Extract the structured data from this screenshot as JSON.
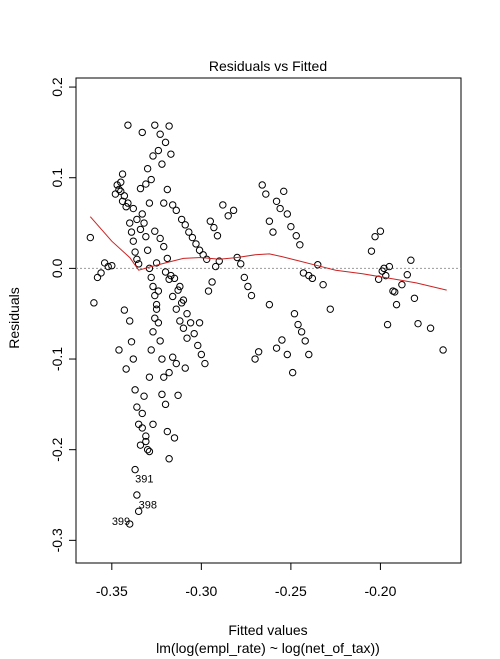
{
  "chart_data": {
    "type": "scatter",
    "title": "Residuals vs Fitted",
    "xlabel": "Fitted values",
    "xlabel_sub": "lm(log(empl_rate) ~ log(net_of_tax))",
    "ylabel": "Residuals",
    "xlim": [
      -0.37,
      -0.155
    ],
    "ylim": [
      -0.325,
      0.21
    ],
    "x_ticks": [
      -0.35,
      -0.3,
      -0.25,
      -0.2
    ],
    "x_tick_labels": [
      "-0.35",
      "-0.30",
      "-0.25",
      "-0.20"
    ],
    "y_ticks": [
      -0.3,
      -0.2,
      -0.1,
      0.0,
      0.1,
      0.2
    ],
    "y_tick_labels": [
      "-0.3",
      "-0.2",
      "-0.1",
      "0.0",
      "0.1",
      "0.2"
    ],
    "reference_line_y": 0,
    "colors": {
      "points": "#000000",
      "smooth": "#cc2222",
      "reference": "#9a9a9a"
    },
    "points": [
      [
        -0.362,
        0.034
      ],
      [
        -0.36,
        -0.038
      ],
      [
        -0.358,
        -0.01
      ],
      [
        -0.356,
        -0.005
      ],
      [
        -0.354,
        0.006
      ],
      [
        -0.352,
        0.002
      ],
      [
        -0.35,
        0.003
      ],
      [
        -0.348,
        0.082
      ],
      [
        -0.347,
        0.092
      ],
      [
        -0.346,
        0.087
      ],
      [
        -0.345,
        0.095
      ],
      [
        -0.344,
        0.074
      ],
      [
        -0.343,
        0.08
      ],
      [
        -0.345,
        0.085
      ],
      [
        -0.344,
        0.104
      ],
      [
        -0.342,
        0.068
      ],
      [
        -0.341,
        0.072
      ],
      [
        -0.34,
        0.05
      ],
      [
        -0.339,
        0.04
      ],
      [
        -0.338,
        0.03
      ],
      [
        -0.337,
        0.018
      ],
      [
        -0.336,
        0.01
      ],
      [
        -0.335,
        0.005
      ],
      [
        -0.334,
        0.088
      ],
      [
        -0.333,
        0.06
      ],
      [
        -0.332,
        0.05
      ],
      [
        -0.331,
        0.035
      ],
      [
        -0.33,
        0.02
      ],
      [
        -0.329,
        0.0
      ],
      [
        -0.328,
        -0.01
      ],
      [
        -0.327,
        -0.02
      ],
      [
        -0.326,
        -0.03
      ],
      [
        -0.325,
        -0.045
      ],
      [
        -0.324,
        -0.06
      ],
      [
        -0.323,
        -0.08
      ],
      [
        -0.322,
        -0.1
      ],
      [
        -0.321,
        -0.12
      ],
      [
        -0.32,
        -0.15
      ],
      [
        -0.319,
        -0.18
      ],
      [
        -0.318,
        -0.21
      ],
      [
        -0.346,
        -0.09
      ],
      [
        -0.343,
        -0.046
      ],
      [
        -0.342,
        -0.111
      ],
      [
        -0.34,
        -0.058
      ],
      [
        -0.339,
        -0.081
      ],
      [
        -0.338,
        -0.1
      ],
      [
        -0.337,
        -0.134
      ],
      [
        -0.336,
        -0.153
      ],
      [
        -0.335,
        -0.172
      ],
      [
        -0.334,
        -0.195
      ],
      [
        -0.333,
        -0.16
      ],
      [
        -0.332,
        -0.141
      ],
      [
        -0.331,
        -0.185
      ],
      [
        -0.33,
        -0.2
      ],
      [
        -0.329,
        -0.12
      ],
      [
        -0.328,
        -0.09
      ],
      [
        -0.327,
        -0.07
      ],
      [
        -0.326,
        -0.055
      ],
      [
        -0.325,
        -0.04
      ],
      [
        -0.324,
        -0.025
      ],
      [
        -0.341,
        0.158
      ],
      [
        -0.333,
        0.15
      ],
      [
        -0.326,
        0.158
      ],
      [
        -0.323,
        0.148
      ],
      [
        -0.318,
        0.157
      ],
      [
        -0.32,
        0.139
      ],
      [
        -0.324,
        0.13
      ],
      [
        -0.327,
        0.124
      ],
      [
        -0.33,
        0.11
      ],
      [
        -0.322,
        0.115
      ],
      [
        -0.317,
        0.126
      ],
      [
        -0.331,
        0.093
      ],
      [
        -0.328,
        0.098
      ],
      [
        -0.319,
        0.087
      ],
      [
        -0.316,
        0.07
      ],
      [
        -0.321,
        0.072
      ],
      [
        -0.314,
        0.064
      ],
      [
        -0.311,
        0.054
      ],
      [
        -0.309,
        0.048
      ],
      [
        -0.307,
        0.04
      ],
      [
        -0.305,
        0.034
      ],
      [
        -0.303,
        0.027
      ],
      [
        -0.301,
        0.02
      ],
      [
        -0.299,
        0.015
      ],
      [
        -0.297,
        0.01
      ],
      [
        -0.295,
        0.052
      ],
      [
        -0.293,
        0.045
      ],
      [
        -0.291,
        0.036
      ],
      [
        -0.312,
        -0.02
      ],
      [
        -0.31,
        -0.035
      ],
      [
        -0.308,
        -0.05
      ],
      [
        -0.306,
        -0.06
      ],
      [
        -0.304,
        -0.072
      ],
      [
        -0.302,
        -0.085
      ],
      [
        -0.3,
        -0.095
      ],
      [
        -0.298,
        -0.105
      ],
      [
        -0.313,
        -0.14
      ],
      [
        -0.315,
        -0.187
      ],
      [
        -0.309,
        -0.11
      ],
      [
        -0.301,
        -0.06
      ],
      [
        -0.296,
        -0.025
      ],
      [
        -0.294,
        -0.015
      ],
      [
        -0.292,
        0.002
      ],
      [
        -0.29,
        0.008
      ],
      [
        -0.288,
        0.07
      ],
      [
        -0.285,
        0.058
      ],
      [
        -0.282,
        0.064
      ],
      [
        -0.28,
        0.012
      ],
      [
        -0.278,
        0.005
      ],
      [
        -0.276,
        -0.01
      ],
      [
        -0.274,
        -0.02
      ],
      [
        -0.272,
        -0.03
      ],
      [
        -0.27,
        -0.1
      ],
      [
        -0.268,
        -0.092
      ],
      [
        -0.266,
        0.092
      ],
      [
        -0.264,
        0.082
      ],
      [
        -0.262,
        0.052
      ],
      [
        -0.26,
        0.04
      ],
      [
        -0.258,
        0.074
      ],
      [
        -0.256,
        0.066
      ],
      [
        -0.254,
        0.085
      ],
      [
        -0.252,
        0.06
      ],
      [
        -0.25,
        0.046
      ],
      [
        -0.248,
        -0.05
      ],
      [
        -0.246,
        -0.062
      ],
      [
        -0.244,
        -0.07
      ],
      [
        -0.242,
        -0.08
      ],
      [
        -0.24,
        -0.095
      ],
      [
        -0.262,
        -0.04
      ],
      [
        -0.258,
        -0.088
      ],
      [
        -0.255,
        -0.079
      ],
      [
        -0.252,
        -0.095
      ],
      [
        -0.249,
        -0.115
      ],
      [
        -0.247,
        0.036
      ],
      [
        -0.245,
        0.026
      ],
      [
        -0.243,
        -0.005
      ],
      [
        -0.24,
        -0.008
      ],
      [
        -0.238,
        -0.011
      ],
      [
        -0.235,
        0.004
      ],
      [
        -0.232,
        -0.018
      ],
      [
        -0.228,
        -0.045
      ],
      [
        -0.205,
        0.019
      ],
      [
        -0.203,
        0.035
      ],
      [
        -0.2,
        0.041
      ],
      [
        -0.199,
        -0.003
      ],
      [
        -0.197,
        -0.008
      ],
      [
        -0.195,
        0.002
      ],
      [
        -0.193,
        -0.025
      ],
      [
        -0.191,
        -0.04
      ],
      [
        -0.188,
        -0.018
      ],
      [
        -0.185,
        -0.007
      ],
      [
        -0.183,
        0.009
      ],
      [
        -0.181,
        -0.033
      ],
      [
        -0.179,
        -0.061
      ],
      [
        -0.172,
        -0.066
      ],
      [
        -0.165,
        -0.09
      ],
      [
        -0.196,
        -0.062
      ],
      [
        -0.201,
        -0.012
      ],
      [
        -0.198,
        0.0
      ],
      [
        -0.192,
        -0.026
      ],
      [
        -0.338,
        0.066
      ],
      [
        -0.336,
        0.054
      ],
      [
        -0.334,
        0.043
      ],
      [
        -0.329,
        0.072
      ],
      [
        -0.326,
        0.041
      ],
      [
        -0.323,
        0.033
      ],
      [
        -0.321,
        0.024
      ],
      [
        -0.319,
        0.011
      ],
      [
        -0.317,
        -0.008
      ],
      [
        -0.315,
        -0.011
      ],
      [
        -0.313,
        -0.024
      ],
      [
        -0.311,
        -0.038
      ],
      [
        -0.325,
        0.006
      ],
      [
        -0.32,
        -0.004
      ],
      [
        -0.318,
        -0.012
      ],
      [
        -0.316,
        -0.031
      ],
      [
        -0.314,
        -0.045
      ],
      [
        -0.312,
        -0.058
      ],
      [
        -0.31,
        -0.066
      ],
      [
        -0.308,
        -0.077
      ],
      [
        -0.337,
        -0.222
      ],
      [
        -0.336,
        -0.25
      ],
      [
        -0.335,
        -0.268
      ],
      [
        -0.34,
        -0.282
      ],
      [
        -0.329,
        -0.202
      ],
      [
        -0.331,
        -0.191
      ],
      [
        -0.327,
        -0.172
      ],
      [
        -0.333,
        -0.176
      ],
      [
        -0.322,
        -0.139
      ],
      [
        -0.318,
        -0.115
      ],
      [
        -0.316,
        -0.098
      ],
      [
        -0.314,
        -0.105
      ]
    ],
    "smooth": [
      [
        -0.362,
        0.057
      ],
      [
        -0.35,
        0.03
      ],
      [
        -0.34,
        0.012
      ],
      [
        -0.335,
        -0.002
      ],
      [
        -0.328,
        0.002
      ],
      [
        -0.32,
        0.006
      ],
      [
        -0.31,
        0.011
      ],
      [
        -0.3,
        0.012
      ],
      [
        -0.29,
        0.01
      ],
      [
        -0.28,
        0.012
      ],
      [
        -0.27,
        0.015
      ],
      [
        -0.262,
        0.016
      ],
      [
        -0.255,
        0.013
      ],
      [
        -0.245,
        0.008
      ],
      [
        -0.235,
        0.003
      ],
      [
        -0.225,
        -0.002
      ],
      [
        -0.21,
        -0.006
      ],
      [
        -0.195,
        -0.011
      ],
      [
        -0.18,
        -0.016
      ],
      [
        -0.163,
        -0.024
      ]
    ],
    "point_labels": [
      {
        "label": "391",
        "x": -0.337,
        "y": -0.236
      },
      {
        "label": "398",
        "x": -0.335,
        "y": -0.265
      },
      {
        "label": "399",
        "x": -0.35,
        "y": -0.283
      }
    ]
  }
}
